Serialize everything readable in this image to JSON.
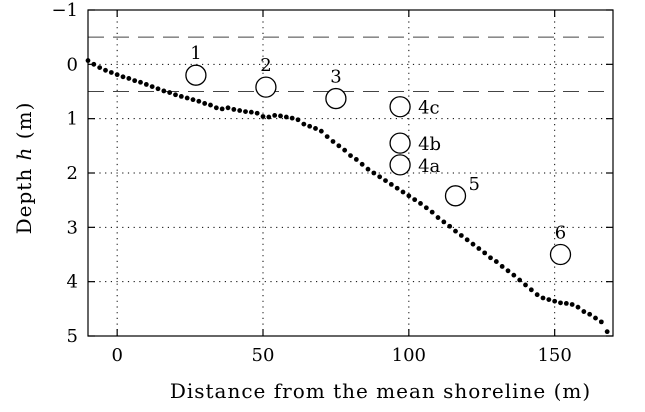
{
  "chart_data": {
    "type": "scatter",
    "title": "",
    "xlabel": "Distance from the mean shoreline (m)",
    "ylabel_prefix": "Depth ",
    "ylabel_var": "h",
    "ylabel_suffix": " (m)",
    "xlim": [
      -10,
      170
    ],
    "ylim": [
      5,
      -1
    ],
    "y_inverted": true,
    "x_ticks": [
      0,
      50,
      100,
      150
    ],
    "x_tick_labels": [
      "0",
      "50",
      "100",
      "150"
    ],
    "y_ticks": [
      -1,
      0,
      1,
      2,
      3,
      4,
      5
    ],
    "y_tick_labels": [
      "−1",
      "0",
      "1",
      "2",
      "3",
      "4",
      "5"
    ],
    "grid": "dotted",
    "dashed_lines_depth": [
      -0.5,
      0.5
    ],
    "profile": {
      "x": [
        -10,
        -8,
        -6,
        -4,
        -2,
        0,
        2,
        4,
        6,
        8,
        10,
        12,
        14,
        16,
        18,
        20,
        22,
        24,
        26,
        28,
        30,
        32,
        34,
        36,
        38,
        40,
        42,
        44,
        46,
        48,
        50,
        52,
        54,
        56,
        58,
        60,
        62,
        64,
        66,
        68,
        70,
        72,
        74,
        76,
        78,
        80,
        82,
        84,
        86,
        88,
        90,
        92,
        94,
        96,
        98,
        100,
        102,
        104,
        106,
        108,
        110,
        112,
        114,
        116,
        118,
        120,
        122,
        124,
        126,
        128,
        130,
        132,
        134,
        136,
        138,
        140,
        142,
        144,
        146,
        148,
        150,
        152,
        154,
        156,
        158,
        160,
        162,
        164,
        166,
        168
      ],
      "y": [
        -0.07,
        0.0,
        0.06,
        0.11,
        0.15,
        0.19,
        0.23,
        0.26,
        0.3,
        0.33,
        0.37,
        0.41,
        0.45,
        0.49,
        0.52,
        0.56,
        0.59,
        0.62,
        0.65,
        0.68,
        0.72,
        0.75,
        0.8,
        0.82,
        0.8,
        0.83,
        0.85,
        0.87,
        0.88,
        0.9,
        0.96,
        0.97,
        0.94,
        0.95,
        0.97,
        0.99,
        1.02,
        1.1,
        1.14,
        1.18,
        1.23,
        1.33,
        1.42,
        1.5,
        1.58,
        1.68,
        1.75,
        1.84,
        1.93,
        2.0,
        2.07,
        2.14,
        2.21,
        2.28,
        2.35,
        2.42,
        2.49,
        2.56,
        2.64,
        2.72,
        2.82,
        2.9,
        2.98,
        3.07,
        3.15,
        3.23,
        3.31,
        3.39,
        3.47,
        3.56,
        3.63,
        3.72,
        3.8,
        3.88,
        3.97,
        4.06,
        4.15,
        4.24,
        4.3,
        4.33,
        4.36,
        4.39,
        4.4,
        4.42,
        4.47,
        4.55,
        4.6,
        4.67,
        4.74,
        4.92
      ]
    },
    "stations": [
      {
        "label": "1",
        "x": 27,
        "depth": 0.2,
        "label_pos": "above"
      },
      {
        "label": "2",
        "x": 51,
        "depth": 0.42,
        "label_pos": "above"
      },
      {
        "label": "3",
        "x": 75,
        "depth": 0.63,
        "label_pos": "above"
      },
      {
        "label": "4c",
        "x": 97,
        "depth": 0.78,
        "label_pos": "right"
      },
      {
        "label": "4b",
        "x": 97,
        "depth": 1.45,
        "label_pos": "right"
      },
      {
        "label": "4a",
        "x": 97,
        "depth": 1.85,
        "label_pos": "right"
      },
      {
        "label": "5",
        "x": 116,
        "depth": 2.42,
        "label_pos": "above-right"
      },
      {
        "label": "6",
        "x": 152,
        "depth": 3.5,
        "label_pos": "above"
      }
    ]
  }
}
